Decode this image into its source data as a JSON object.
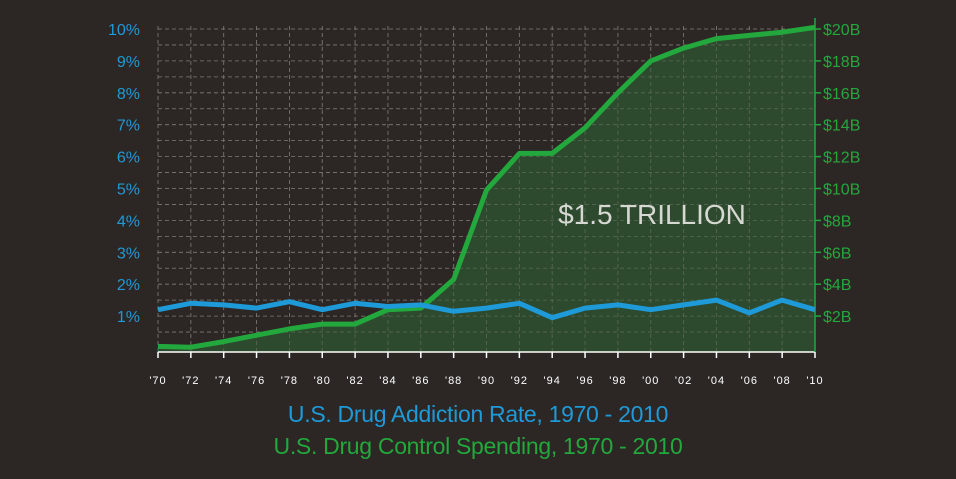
{
  "chart_data": {
    "type": "line",
    "titles": [
      "U.S. Drug Addiction Rate, 1970 - 2010",
      "U.S. Drug Control Spending, 1970 - 2010"
    ],
    "annotation": "$1.5 TRILLION",
    "x": [
      1970,
      1972,
      1974,
      1976,
      1978,
      1980,
      1982,
      1984,
      1986,
      1988,
      1990,
      1992,
      1994,
      1996,
      1998,
      2000,
      2002,
      2004,
      2006,
      2008,
      2010
    ],
    "x_tick_labels": [
      "'70",
      "'72",
      "'74",
      "'76",
      "'78",
      "'80",
      "'82",
      "'84",
      "'86",
      "'88",
      "'90",
      "'92",
      "'94",
      "'96",
      "'98",
      "'00",
      "'02",
      "'04",
      "'06",
      "'08",
      "'10"
    ],
    "y_left": {
      "ylim": [
        0,
        10
      ],
      "ticks": [
        1,
        2,
        3,
        4,
        5,
        6,
        7,
        8,
        9,
        10
      ],
      "tick_labels": [
        "1%",
        "2%",
        "3%",
        "4%",
        "5%",
        "6%",
        "7%",
        "8%",
        "9%",
        "10%"
      ],
      "color": "#1e9ad8"
    },
    "y_right": {
      "ylim": [
        0,
        20
      ],
      "ticks": [
        2,
        4,
        6,
        8,
        10,
        12,
        14,
        16,
        18,
        20
      ],
      "tick_labels": [
        "$2B",
        "$4B",
        "$6B",
        "$8B",
        "$10B",
        "$12B",
        "$14B",
        "$16B",
        "$18B",
        "$20B"
      ],
      "color": "#22a83c"
    },
    "grid": true,
    "series": [
      {
        "axis": "left",
        "color": "#1e9ad8",
        "values": [
          1.2,
          1.4,
          1.35,
          1.25,
          1.45,
          1.2,
          1.4,
          1.3,
          1.35,
          1.15,
          1.25,
          1.4,
          0.95,
          1.25,
          1.35,
          1.2,
          1.35,
          1.5,
          1.1,
          1.5,
          1.2
        ]
      },
      {
        "axis": "right",
        "color": "#22a83c",
        "fill": "#2f4f30",
        "values": [
          0.1,
          0.05,
          0.4,
          0.8,
          1.2,
          1.5,
          1.5,
          2.4,
          2.5,
          4.3,
          9.9,
          12.2,
          12.2,
          13.8,
          16.0,
          18.0,
          18.8,
          19.4,
          19.6,
          19.8,
          20.1
        ]
      }
    ]
  }
}
